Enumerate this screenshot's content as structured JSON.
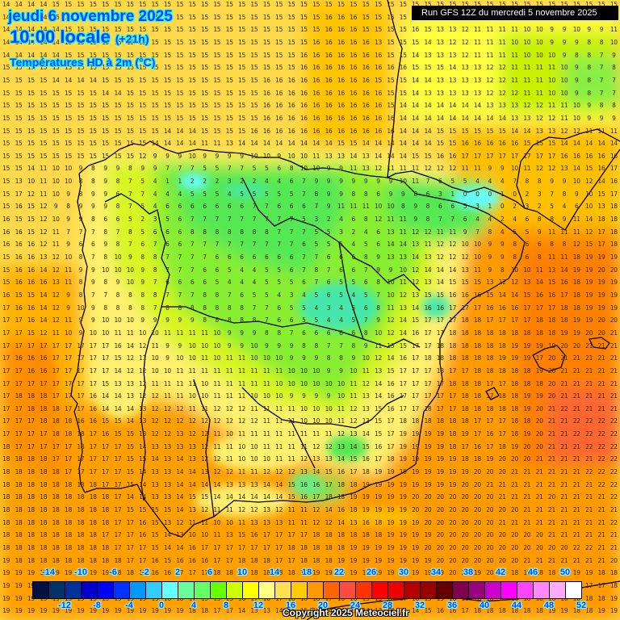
{
  "header": {
    "date": "jeudi 6 novembre 2025",
    "time": "10:00 locale",
    "offset": "(+21h)",
    "parameter": "Températures HD à 2m (°C)"
  },
  "run_banner": "Run GFS 12Z du mercredi 5 novembre 2025",
  "copyright": "Copyright 2025 Meteociel.fr",
  "legend": {
    "colors": [
      "#001040",
      "#003366",
      "#003399",
      "#0000cc",
      "#0000ff",
      "#0033ff",
      "#0099ff",
      "#33ccff",
      "#66ffff",
      "#66ff99",
      "#66ff66",
      "#66ff00",
      "#ccff00",
      "#ffff00",
      "#ffff80",
      "#ffe050",
      "#ffcc00",
      "#ff9900",
      "#ff6600",
      "#ff4c3f",
      "#ff3300",
      "#ff0000",
      "#ee0000",
      "#b30000",
      "#990000",
      "#660000",
      "#800050",
      "#990080",
      "#cc00cc",
      "#ff00ff",
      "#ff44ff",
      "#ff88ff",
      "#ffaaff",
      "#ffffff"
    ],
    "labels_top": [
      "-14",
      "-10",
      "-6",
      "-2",
      "2",
      "6",
      "10",
      "14",
      "18",
      "22",
      "26",
      "30",
      "34",
      "38",
      "42",
      "46",
      "50"
    ],
    "labels_bottom": [
      "-12",
      "-8",
      "-4",
      "0",
      "4",
      "8",
      "12",
      "16",
      "20",
      "24",
      "28",
      "32",
      "36",
      "40",
      "44",
      "48",
      "52"
    ]
  },
  "grid": {
    "cols": 50,
    "rows": 49,
    "values": [
      "14 14 14 14 15 15 15 15 15 15 15 15 15 15 15 15 15 15 15 15 15 15 15 15 15 15 15 15 15 15 15 15 15 15 15 15 15 15 15 15 15 15 15 15 15 15 15 15 15 15",
      "14 14 14 14 15 15 15 15 15 15 15 15 15 15 15 15 15 15 15 15 15 15 15 15 15 15 16 16 16 15 15 15 15 13 13 13 13 12 12 12 11 11 11 11 11 11 11 10 11 13",
      "14 14 14 14 14 15 15 15 15 15 15 15 15 15 15 15 15 15 15 15 15 15 15 15 15 15 16 16 16 15 15 15 15 16 15 13 13 12 11 11 11 11 10 10 9 9 10 9 9 11",
      "14 14 14 14 14 15 15 15 15 15 15 15 15 15 15 15 15 15 15 15 15 15 15 15 15 16 16 16 16 16 13 15 15 15 14 13 12 12 11 11 11 10 10 10 9 9 9 8 8 10",
      "14 14 14 14 14 15 15 15 15 15 15 15 15 15 15 15 15 15 15 15 15 15 15 15 16 16 16 16 16 16 16 15 15 14 13 13 13 12 11 11 11 11 10 10 10 9 8 8 7 9",
      "15 15 15 15 15 15 15 15 15 15 15 15 15 15 15 15 15 15 15 15 15 15 15 15 16 16 16 16 16 16 16 16 16 15 15 15 14 13 13 12 12 11 11 11 11 10 9 8 7 8",
      "15 15 15 15 14 14 14 14 15 15 15 15 15 15 15 15 15 15 15 15 15 16 16 16 16 16 16 16 16 16 15 15 15 14 14 13 13 13 13 12 12 11 11 11 10 10 9 8 7 7",
      "15 15 15 15 15 15 15 15 14 14 15 15 15 15 15 15 15 15 15 15 15 16 16 16 16 16 16 16 16 16 16 15 15 14 13 13 13 13 13 12 12 12 11 11 10 10 9 8 7 7",
      "15 15 15 15 15 15 15 15 15 15 15 15 15 15 15 15 15 15 15 15 15 16 16 16 16 16 16 16 16 16 16 15 14 14 14 14 14 14 14 13 13 13 12 12 11 11 10 9 8 8",
      "15 15 15 15 15 15 15 15 15 15 15 15 15 15 15 15 15 15 15 15 15 16 16 16 16 16 16 16 16 16 16 16 14 14 14 14 14 14 14 14 14 13 13 12 12 11 10 9 9 9",
      "15 15 15 15 15 15 15 15 15 15 15 15 15 14 14 14 15 15 15 15 16 16 16 16 16 16 16 16 16 16 16 16 14 14 14 15 15 15 15 15 15 14 14 13 13 12 12 11 11 11",
      "15 15 15 15 15 15 15 15 15 15 15 15 14 14 14 14 11 11 13 14 14 14 14 14 14 14 14 15 15 14 14 14 14 14 14 15 15 16 16 16 16 16 15 15 15 14 14 14 14 14",
      "15 15 15 15 15 15 15 15 15 15 15 12 9 9 9 10 9 9 9 9 10 10 9 10 10 11 13 13 14 13 14 14 14 15 15 16 16 17 17 17 17 17 17 17 17 16 16 16 16 16",
      "15 15 14 11 10 10 9 8 9 9 8 9 9 7 7 7 5 5 7 7 5 5 6 8 10 10 9 9 11 13 12 11 11 11 12 12 12 11 11 9 9 10 11 12 12 13 14 15 16 17",
      "15 13 10 11 10 10 8 8 9 8 7 5 4 1 1 2 2 2 3 2 2 4 4 6 7 9 9 9 9 9 9 9 10 11 7 6 5 5 4 4 4 7 8 8 9 9 10 12 14 16",
      "15 17 12 11 10 9 8 9 9 6 7 7 4 4 4 5 5 5 4 5 5 5 5 5 7 8 9 9 8 8 6 9 9 8 6 3 1 0 0 0 1 0 2 3 7 8 9 10 15 17",
      "15 16 15 12 9 8 9 9 9 8 7 5 4 6 6 6 6 6 6 6 7 7 6 6 6 7 9 11 11 11 10 10 8 9 8 6 6 5 3 1 0 2 3 2 5 4 6 10 13 18",
      "16 15 15 12 10 9 9 8 6 6 5 2 3 5 6 7 7 7 7 7 7 7 7 7 5 3 2 4 6 8 12 11 11 9 8 7 7 6 4 4 2 4 6 8 8 9 11 14 18 18",
      "16 16 15 12 11 7 7 7 8 7 8 5 6 6 6 8 8 8 8 8 8 8 7 7 7 5 5 3 2 4 6 13 11 12 12 11 11 9 7 8 4 5 5 9 11 11 11 12 17 18",
      "16 16 16 12 11 9 6 6 9 8 7 6 7 6 6 7 7 7 7 7 7 7 7 7 6 5 5 5 4 5 6 14 14 13 11 12 12 10 10 9 9 8 6 6 8 8 12 15 17 18",
      "15 16 16 13 12 10 8 7 8 10 9 8 8 7 7 7 7 6 6 6 6 6 6 6 7 7 6 6 6 8 9 13 13 14 13 12 12 12 10 9 9 8 6 8 11 11 18 19 19 19",
      "15 16 16 14 12 11 9 9 10 10 10 9 8 7 7 7 6 6 5 4 4 5 5 6 7 8 7 6 6 7 9 9 10 12 14 14 14 13 11 9 8 10 10 11 13 14 19 19 20 20",
      "15 16 16 16 13 11 8 9 8 9 10 9 7 6 6 6 6 5 4 4 4 5 5 5 6 7 6 5 5 6 8 10 11 12 13 14 15 15 15 13 12 12 13 14 15 16 18 19 19 19",
      "16 15 15 14 12 9 8 7 7 8 8 8 8 7 7 7 8 8 7 6 5 5 4 3 4 5 6 5 4 5 7 10 12 13 15 15 16 16 16 15 14 14 15 16 16 17 18 19 19 19",
      "17 16 16 14 12 9 10 9 8 8 8 8 7 8 8 8 8 8 8 8 7 7 6 5 5 4 3 4 5 6 8 11 13 14 16 16 17 17 17 16 16 16 17 17 17 18 18 19 19 19",
      "17 17 16 14 12 11 9 9 10 10 10 9 9 9 9 9 8 8 8 8 8 7 6 6 5 5 4 4 5 7 9 12 14 15 17 17 17 18 18 17 17 17 17 18 18 18 19 19 20 20",
      "17 17 15 12 11 10 9 10 10 11 11 10 10 11 11 11 11 10 9 9 9 8 8 7 6 6 6 6 6 8 10 12 14 16 17 17 18 18 18 18 18 18 18 18 18 19 19 20 20 21",
      "17 17 17 17 17 17 17 17 17 16 14 12 11 9 9 10 10 10 9 9 10 9 9 9 8 8 7 7 8 9 11 13 15 17 17 18 18 18 18 18 18 19 19 19 19 20 20 21 21 21",
      "17 16 16 16 17 17 17 17 17 15 12 11 10 9 10 10 11 10 11 11 10 10 10 9 9 9 8 8 9 10 12 14 16 17 18 18 18 18 18 18 19 19 19 17 20 21 21 21 21 21",
      "17 17 16 16 17 17 17 17 17 14 12 12 10 10 11 11 11 11 11 11 11 11 11 10 10 10 9 9 10 11 13 15 17 17 17 18 17 17 18 18 18 18 18 19 20 21 21 21 21 21",
      "17 17 17 17 17 17 17 17 15 13 13 12 11 11 11 11 10 11 11 11 11 11 10 10 10 10 10 10 11 12 14 16 17 17 17 17 18 18 18 17 17 18 18 18 20 21 21 21 21 21",
      "17 18 18 18 17 17 17 16 14 14 13 12 12 11 11 10 10 11 11 11 10 10 10 9 9 9 9 10 11 13 14 16 17 17 17 17 17 18 18 17 18 18 19 19 20 21 21 21 21 21",
      "17 17 18 18 18 17 17 16 14 14 14 13 12 12 12 11 11 12 12 12 11 11 11 11 10 10 10 11 12 13 15 16 17 17 18 17 17 18 18 18 18 18 19 20 21 22 21 21 21 21",
      "17 17 17 18 18 18 16 16 15 15 14 13 12 12 12 12 12 12 12 12 12 11 11 11 10 10 10 11 12 13 15 17 18 18 18 18 18 18 17 17 17 18 18 20 21 21 22 22 22 22",
      "17 17 17 17 18 18 18 17 16 15 15 13 12 12 13 12 12 11 10 11 11 11 11 11 11 11 11 12 13 14 15 17 19 19 19 19 18 19 17 16 17 18 19 20 21 21 22 22 22 22",
      "18 17 17 17 17 17 18 17 17 17 15 14 13 13 13 13 12 11 11 10 10 11 11 11 11 12 12 13 14 15 16 17 19 19 19 19 18 17 16 17 18 19 20 20 21 21 21 22 22 22",
      "18 18 18 18 17 17 17 17 17 17 15 15 14 13 14 13 12 12 11 10 10 10 11 11 12 13 13 14 15 16 17 18 19 19 19 19 19 18 18 19 20 20 20 21 21 21 21 21 22 22",
      "18 18 18 18 18 17 17 17 17 17 15 14 13 13 14 14 13 12 12 11 11 12 12 12 13 14 15 16 17 18 19 19 19 19 19 19 19 19 20 20 20 21 21 21 21 21 21 22 22 22",
      "18 18 18 18 18 18 18 18 17 17 15 14 13 13 14 14 14 14 13 13 13 14 14 15 16 16 17 18 18 19 19 19 19 19 19 19 19 20 20 21 21 21 21 21 21 21 21 21 22 22",
      "18 18 18 18 18 18 18 18 18 17 14 14 13 13 14 15 15 14 14 14 14 14 14 15 16 17 18 18 19 19 19 19 19 20 20 20 20 20 20 20 21 21 21 21 20 21 21 21 21 22",
      "18 18 18 18 18 18 18 18 18 17 15 15 15 15 14 13 12 11 11 12 12 13 12 11 11 12 14 16 18 19 19 19 19 20 20 20 20 20 20 20 20 20 21 21 21 21 21 21 21 21",
      "18 18 18 18 18 18 18 18 18 17 17 16 15 13 12 11 11 10 10 11 13 13 13 11 11 12 12 14 13 16 18 19 19 19 20 20 20 20 20 20 21 21 21 21 21 21 21 21 21 22",
      "18 18 18 18 18 18 18 18 17 17 17 16 15 14 13 10 10 11 13 15 16 17 17 17 17 18 18 18 18 18 18 19 19 19 19 20 20 20 20 20 20 20 20 20 21 21 21 21 21 21",
      "18 18 18 18 18 18 18 18 18 17 17 17 15 14 14 16 17 17 17 17 17 17 17 18 18 18 18 18 19 19 19 19 19 19 20 20 20 20 20 20 20 20 20 20 20 20 22 22 21 21",
      "19 18 18 18 18 18 18 18 18 18 17 17 16 15 16 16 16 17 17 18 18 18 17 17 18 18 18 19 19 19 19 19 19 19 19 20 20 20 20 20 20 20 21 21 21 21 21 21 21 20",
      "19 19 19 19 19 19 19 19 19 18 18 17 16 16 17 17 17 18 18 18 18 18 18 18 19 19 19 19 19 19 19 19 19 19 19 19 20 20 19 20 19 18 18 18 18 18 19 19 18 18",
      "19 19 19 19 19 19 19 19 19 19 19 18 17 15 15 16 17 17 18 18 18 18 18 18 19 19 19 19 19 19 19 19 19 19 19 19 19 18 18 17 18 18 18 19 17 16 16 17 17 18",
      "19 19 19 19 19 19 19 19 19 19 19 19 19 18 18 17 15 13 13 16 17 18 17 18 18 18 17 16 16 15 15 16 17 16 15 15 16 18 18 18 18 18 18 18 18 18 18 18 18 19",
      "19 19 19 19 19 19 19 19 19 19 19 19 19 19 19 18 18 17 17 14 13 13 14 15 15 15 14 14 13 14 13 14 14 14 15 16 16 17 18 18 18 18 18 18 19 19 18 18 19 19"
    ]
  }
}
